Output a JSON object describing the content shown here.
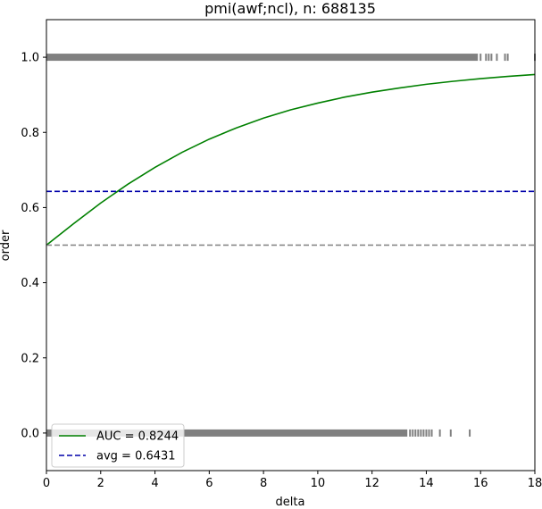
{
  "chart_data": {
    "type": "line",
    "title": "pmi(awf;ncl), n: 688135",
    "xlabel": "delta",
    "ylabel": "order",
    "xlim": [
      0,
      18
    ],
    "ylim": [
      -0.1,
      1.1
    ],
    "xticks": [
      "0",
      "2",
      "4",
      "6",
      "8",
      "10",
      "12",
      "14",
      "16",
      "18"
    ],
    "yticks": [
      "0.0",
      "0.2",
      "0.4",
      "0.6",
      "0.8",
      "1.0"
    ],
    "grid": false,
    "legend_position": "lower-left",
    "series": [
      {
        "name": "AUC = 0.8244",
        "style": "solid",
        "color": "#008000",
        "x": [
          0,
          1,
          2,
          3,
          4,
          5,
          6,
          7,
          8,
          9,
          10,
          11,
          12,
          13,
          14,
          15,
          16,
          17,
          18
        ],
        "y": [
          0.5,
          0.557,
          0.612,
          0.662,
          0.707,
          0.747,
          0.782,
          0.812,
          0.838,
          0.86,
          0.878,
          0.894,
          0.907,
          0.918,
          0.928,
          0.936,
          0.943,
          0.949,
          0.954
        ]
      },
      {
        "name": "avg = 0.6431",
        "style": "dashed",
        "color": "#0000aa",
        "x": [
          0,
          18
        ],
        "y": [
          0.6431,
          0.6431
        ]
      },
      {
        "name": "",
        "style": "dashed",
        "color": "#808080",
        "x": [
          0,
          18
        ],
        "y": [
          0.5,
          0.5
        ]
      }
    ],
    "rug": [
      {
        "y": 1.0,
        "color": "#808080",
        "dense_range": [
          0,
          15.9
        ],
        "sparse_x": [
          16.0,
          16.2,
          16.3,
          16.4,
          16.6,
          16.9,
          17.0,
          18.0
        ]
      },
      {
        "y": 0.0,
        "color": "#808080",
        "dense_range": [
          0,
          13.3
        ],
        "sparse_x": [
          13.4,
          13.5,
          13.6,
          13.7,
          13.8,
          13.9,
          14.0,
          14.1,
          14.2,
          14.5,
          14.9,
          15.6
        ]
      }
    ]
  }
}
